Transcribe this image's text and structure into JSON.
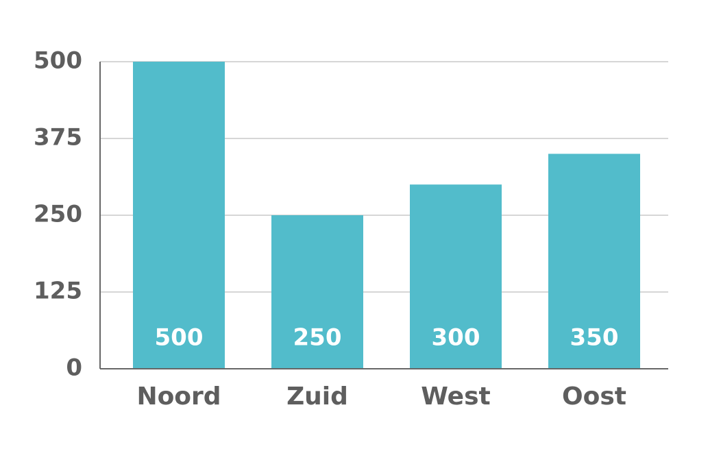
{
  "chart_data": {
    "type": "bar",
    "categories": [
      "Noord",
      "Zuid",
      "West",
      "Oost"
    ],
    "values": [
      500,
      250,
      300,
      350
    ],
    "color": "#52bccb",
    "ylim": [
      0,
      500
    ],
    "yticks": [
      0,
      125,
      250,
      375,
      500
    ],
    "grid": true
  }
}
